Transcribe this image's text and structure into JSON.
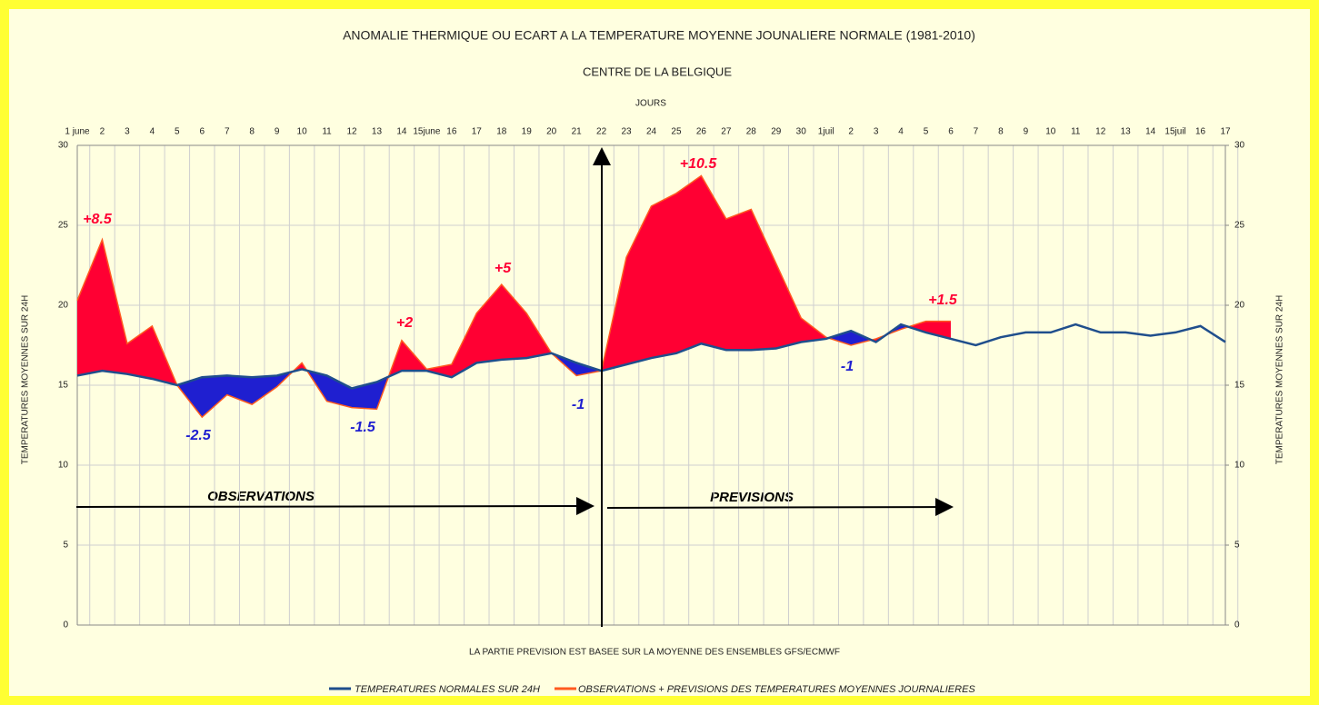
{
  "chart_data": {
    "type": "line",
    "title": "ANOMALIE THERMIQUE OU ECART A LA TEMPERATURE MOYENNE JOUNALIERE NORMALE (1981-2010)",
    "subtitle": "CENTRE DE LA BELGIQUE",
    "x_label": "JOURS",
    "y_label": "TEMPERATURES MOYENNES SUR 24H",
    "y2_label": "TEMPERATURES MOYENNES SUR 24H",
    "note": "LA PARTIE PREVISION EST BASEE SUR LA MOYENNE DES ENSEMBLES GFS/ECMWF",
    "period_labels": [
      "OBSERVATIONS",
      "PREVISIONS"
    ],
    "annotations": [
      "+8.5",
      "-2.5",
      "-1.5",
      "+2",
      "+5",
      "-1",
      "+10.5",
      "-1",
      "+1.5"
    ],
    "categories": [
      "1 june",
      "2",
      "3",
      "4",
      "5",
      "6",
      "7",
      "8",
      "9",
      "10",
      "11",
      "12",
      "13",
      "14",
      "15june",
      "16",
      "17",
      "18",
      "19",
      "20",
      "21",
      "22",
      "23",
      "24",
      "25",
      "26",
      "27",
      "28",
      "29",
      "30",
      "1juil",
      "2",
      "3",
      "4",
      "5",
      "6",
      "7",
      "8",
      "9",
      "10",
      "11",
      "12",
      "13",
      "14",
      "15juil",
      "16",
      "17"
    ],
    "series": [
      {
        "name": "TEMPERATURES NORMALES SUR 24H",
        "color": "#1f4e8c",
        "values": [
          15.6,
          15.9,
          15.7,
          15.4,
          15.0,
          15.5,
          15.6,
          15.5,
          15.6,
          16.0,
          15.6,
          14.8,
          15.2,
          15.9,
          15.9,
          15.5,
          16.4,
          16.6,
          16.7,
          17.0,
          16.4,
          15.9,
          16.3,
          16.7,
          17.0,
          17.6,
          17.2,
          17.2,
          17.3,
          17.7,
          17.9,
          18.4,
          17.7,
          18.8,
          18.3,
          17.9,
          17.5,
          18.0,
          18.3,
          18.3,
          18.8,
          18.3,
          18.3,
          18.1,
          18.3,
          18.7,
          17.7
        ]
      },
      {
        "name": "OBSERVATIONS + PREVISIONS DES TEMPERATURES MOYENNES JOURNALIERES",
        "color": "#ff5a1f",
        "values": [
          20.3,
          24.1,
          17.6,
          18.7,
          15.0,
          13.0,
          14.4,
          13.8,
          14.9,
          16.4,
          14.0,
          13.6,
          13.5,
          17.8,
          16.0,
          16.3,
          19.5,
          21.3,
          19.5,
          17.0,
          15.6,
          15.9,
          23.0,
          26.2,
          27.0,
          28.1,
          25.4,
          26.0,
          22.6,
          19.2,
          18.0,
          17.5,
          17.9,
          18.5,
          19.0,
          19.0,
          null,
          null,
          null,
          null,
          null,
          null,
          null,
          null,
          null,
          null,
          null
        ]
      }
    ],
    "warm_color": "#ff0033",
    "cold_color": "#1f1fd0",
    "ylim": [
      0,
      30
    ],
    "yticks": [
      0,
      5,
      10,
      15,
      20,
      25,
      30
    ],
    "y2lim": [
      0,
      30
    ],
    "y2ticks": [
      0,
      5,
      10,
      15,
      20,
      25,
      30
    ],
    "grid": true
  }
}
